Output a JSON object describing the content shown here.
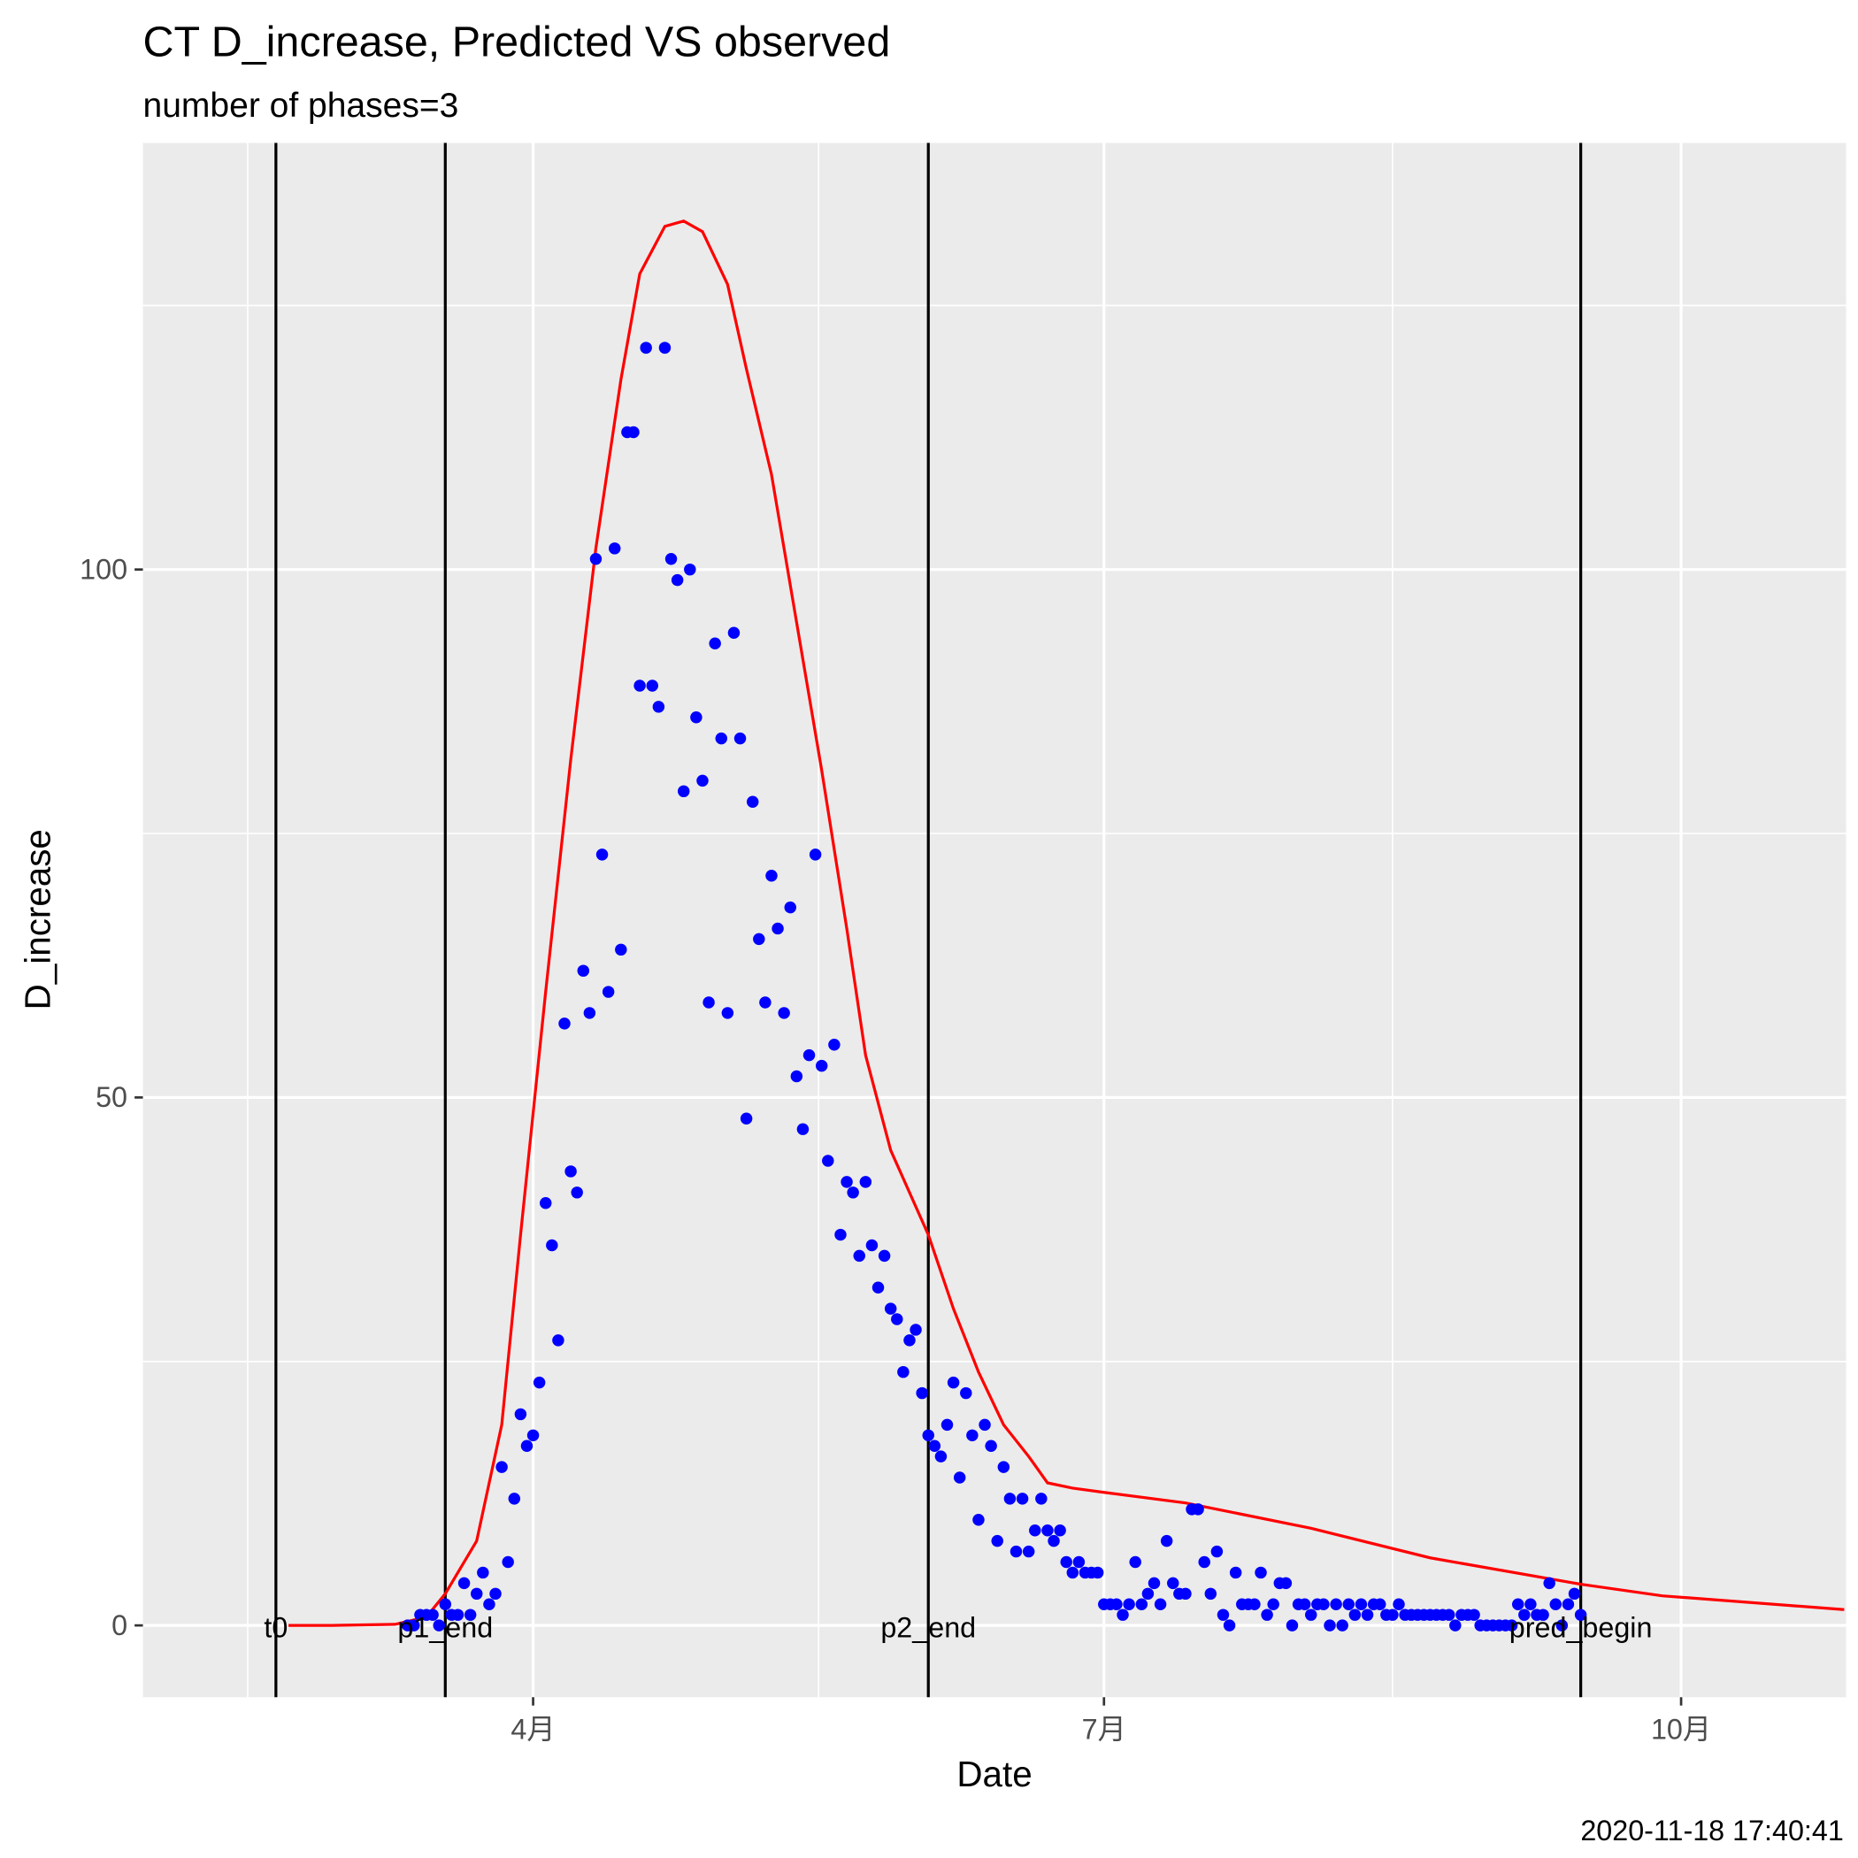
{
  "chart_data": {
    "type": "line",
    "title": "CT D_increase, Predicted VS observed",
    "subtitle": "number of phases=3",
    "x_label": "Date",
    "y_label": "D_increase",
    "caption": "2020-11-18 17:40:41",
    "xlim": [
      29.8,
      301.3
    ],
    "xticks": [
      {
        "value": 92,
        "label": "4月"
      },
      {
        "value": 183,
        "label": "7月"
      },
      {
        "value": 275,
        "label": "10月"
      }
    ],
    "ylim": [
      -6.8,
      140.4
    ],
    "yticks": [
      0,
      50,
      100
    ],
    "grid": true,
    "minor_grid": true,
    "vlines": [
      {
        "x": 51,
        "label": "t0"
      },
      {
        "x": 78,
        "label": "p1_end"
      },
      {
        "x": 155,
        "label": "p2_end"
      },
      {
        "x": 259,
        "label": "pred_begin"
      }
    ],
    "series": [
      {
        "type": "line",
        "color": "#ff0000",
        "x": [
          53,
          60,
          70,
          75,
          78,
          83,
          87,
          90,
          94,
          98,
          102,
          106,
          109,
          113,
          116,
          119,
          123,
          126,
          130,
          134,
          138,
          142,
          145,
          149,
          155,
          159,
          163,
          167,
          171,
          174,
          178,
          183,
          196,
          216,
          235,
          259,
          272,
          301
        ],
        "values": [
          0,
          0,
          0.1,
          0.8,
          3,
          8,
          19,
          37,
          60,
          82,
          102,
          118,
          128,
          132.5,
          133,
          132,
          127,
          119,
          109,
          95,
          81,
          66,
          54,
          45,
          37,
          30,
          24,
          19,
          16,
          13.5,
          13,
          12.6,
          11.6,
          9.2,
          6.4,
          3.9,
          2.8,
          1.5
        ]
      },
      {
        "type": "scatter",
        "color": "#0000ff",
        "x": [
          72,
          73,
          74,
          75,
          76,
          77,
          78,
          79,
          80,
          81,
          82,
          83,
          84,
          85,
          86,
          87,
          88,
          89,
          90,
          91,
          92,
          93,
          94,
          95,
          96,
          97,
          98,
          99,
          100,
          101,
          102,
          103,
          104,
          105,
          106,
          107,
          108,
          109,
          110,
          111,
          112,
          113,
          114,
          115,
          116,
          117,
          118,
          119,
          120,
          121,
          122,
          123,
          124,
          125,
          126,
          127,
          128,
          129,
          130,
          131,
          132,
          133,
          134,
          135,
          136,
          137,
          138,
          139,
          140,
          141,
          142,
          143,
          144,
          145,
          146,
          147,
          148,
          149,
          150,
          151,
          152,
          153,
          154,
          155,
          156,
          157,
          158,
          159,
          160,
          161,
          162,
          163,
          164,
          165,
          166,
          167,
          168,
          169,
          170,
          171,
          172,
          173,
          174,
          175,
          176,
          177,
          178,
          179,
          180,
          181,
          182,
          183,
          184,
          185,
          186,
          187,
          188,
          189,
          190,
          191,
          192,
          193,
          194,
          195,
          196,
          197,
          198,
          199,
          200,
          201,
          202,
          203,
          204,
          205,
          206,
          207,
          208,
          209,
          210,
          211,
          212,
          213,
          214,
          215,
          216,
          217,
          218,
          219,
          220,
          221,
          222,
          223,
          224,
          225,
          226,
          227,
          228,
          229,
          230,
          231,
          232,
          233,
          234,
          235,
          236,
          237,
          238,
          239,
          240,
          241,
          242,
          243,
          244,
          245,
          246,
          247,
          248,
          249,
          250,
          251,
          252,
          253,
          254,
          255,
          256,
          257,
          258,
          259
        ],
        "values": [
          0,
          0,
          1,
          1,
          1,
          0,
          2,
          1,
          1,
          4,
          1,
          3,
          5,
          2,
          3,
          15,
          6,
          12,
          20,
          17,
          18,
          23,
          40,
          36,
          27,
          57,
          43,
          41,
          62,
          58,
          101,
          73,
          60,
          102,
          64,
          113,
          113,
          89,
          121,
          89,
          87,
          121,
          101,
          99,
          79,
          100,
          86,
          80,
          59,
          93,
          84,
          58,
          94,
          84,
          48,
          78,
          65,
          59,
          71,
          66,
          58,
          68,
          52,
          47,
          54,
          73,
          53,
          44,
          55,
          37,
          42,
          41,
          35,
          42,
          36,
          32,
          35,
          30,
          29,
          24,
          27,
          28,
          22,
          18,
          17,
          16,
          19,
          23,
          14,
          22,
          18,
          10,
          19,
          17,
          8,
          15,
          12,
          7,
          12,
          7,
          9,
          12,
          9,
          8,
          9,
          6,
          5,
          6,
          5,
          5,
          5,
          2,
          2,
          2,
          1,
          2,
          6,
          2,
          3,
          4,
          2,
          8,
          4,
          3,
          3,
          11,
          11,
          6,
          3,
          7,
          1,
          0,
          5,
          2,
          2,
          2,
          5,
          1,
          2,
          4,
          4,
          0,
          2,
          2,
          1,
          2,
          2,
          0,
          2,
          0,
          2,
          1,
          2,
          1,
          2,
          2,
          1,
          1,
          2,
          1,
          1,
          1,
          1,
          1,
          1,
          1,
          1,
          0,
          1,
          1,
          1,
          0,
          0,
          0,
          0,
          0,
          0,
          2,
          1,
          2,
          1,
          1,
          4,
          2,
          0,
          2,
          3,
          1
        ]
      }
    ]
  }
}
